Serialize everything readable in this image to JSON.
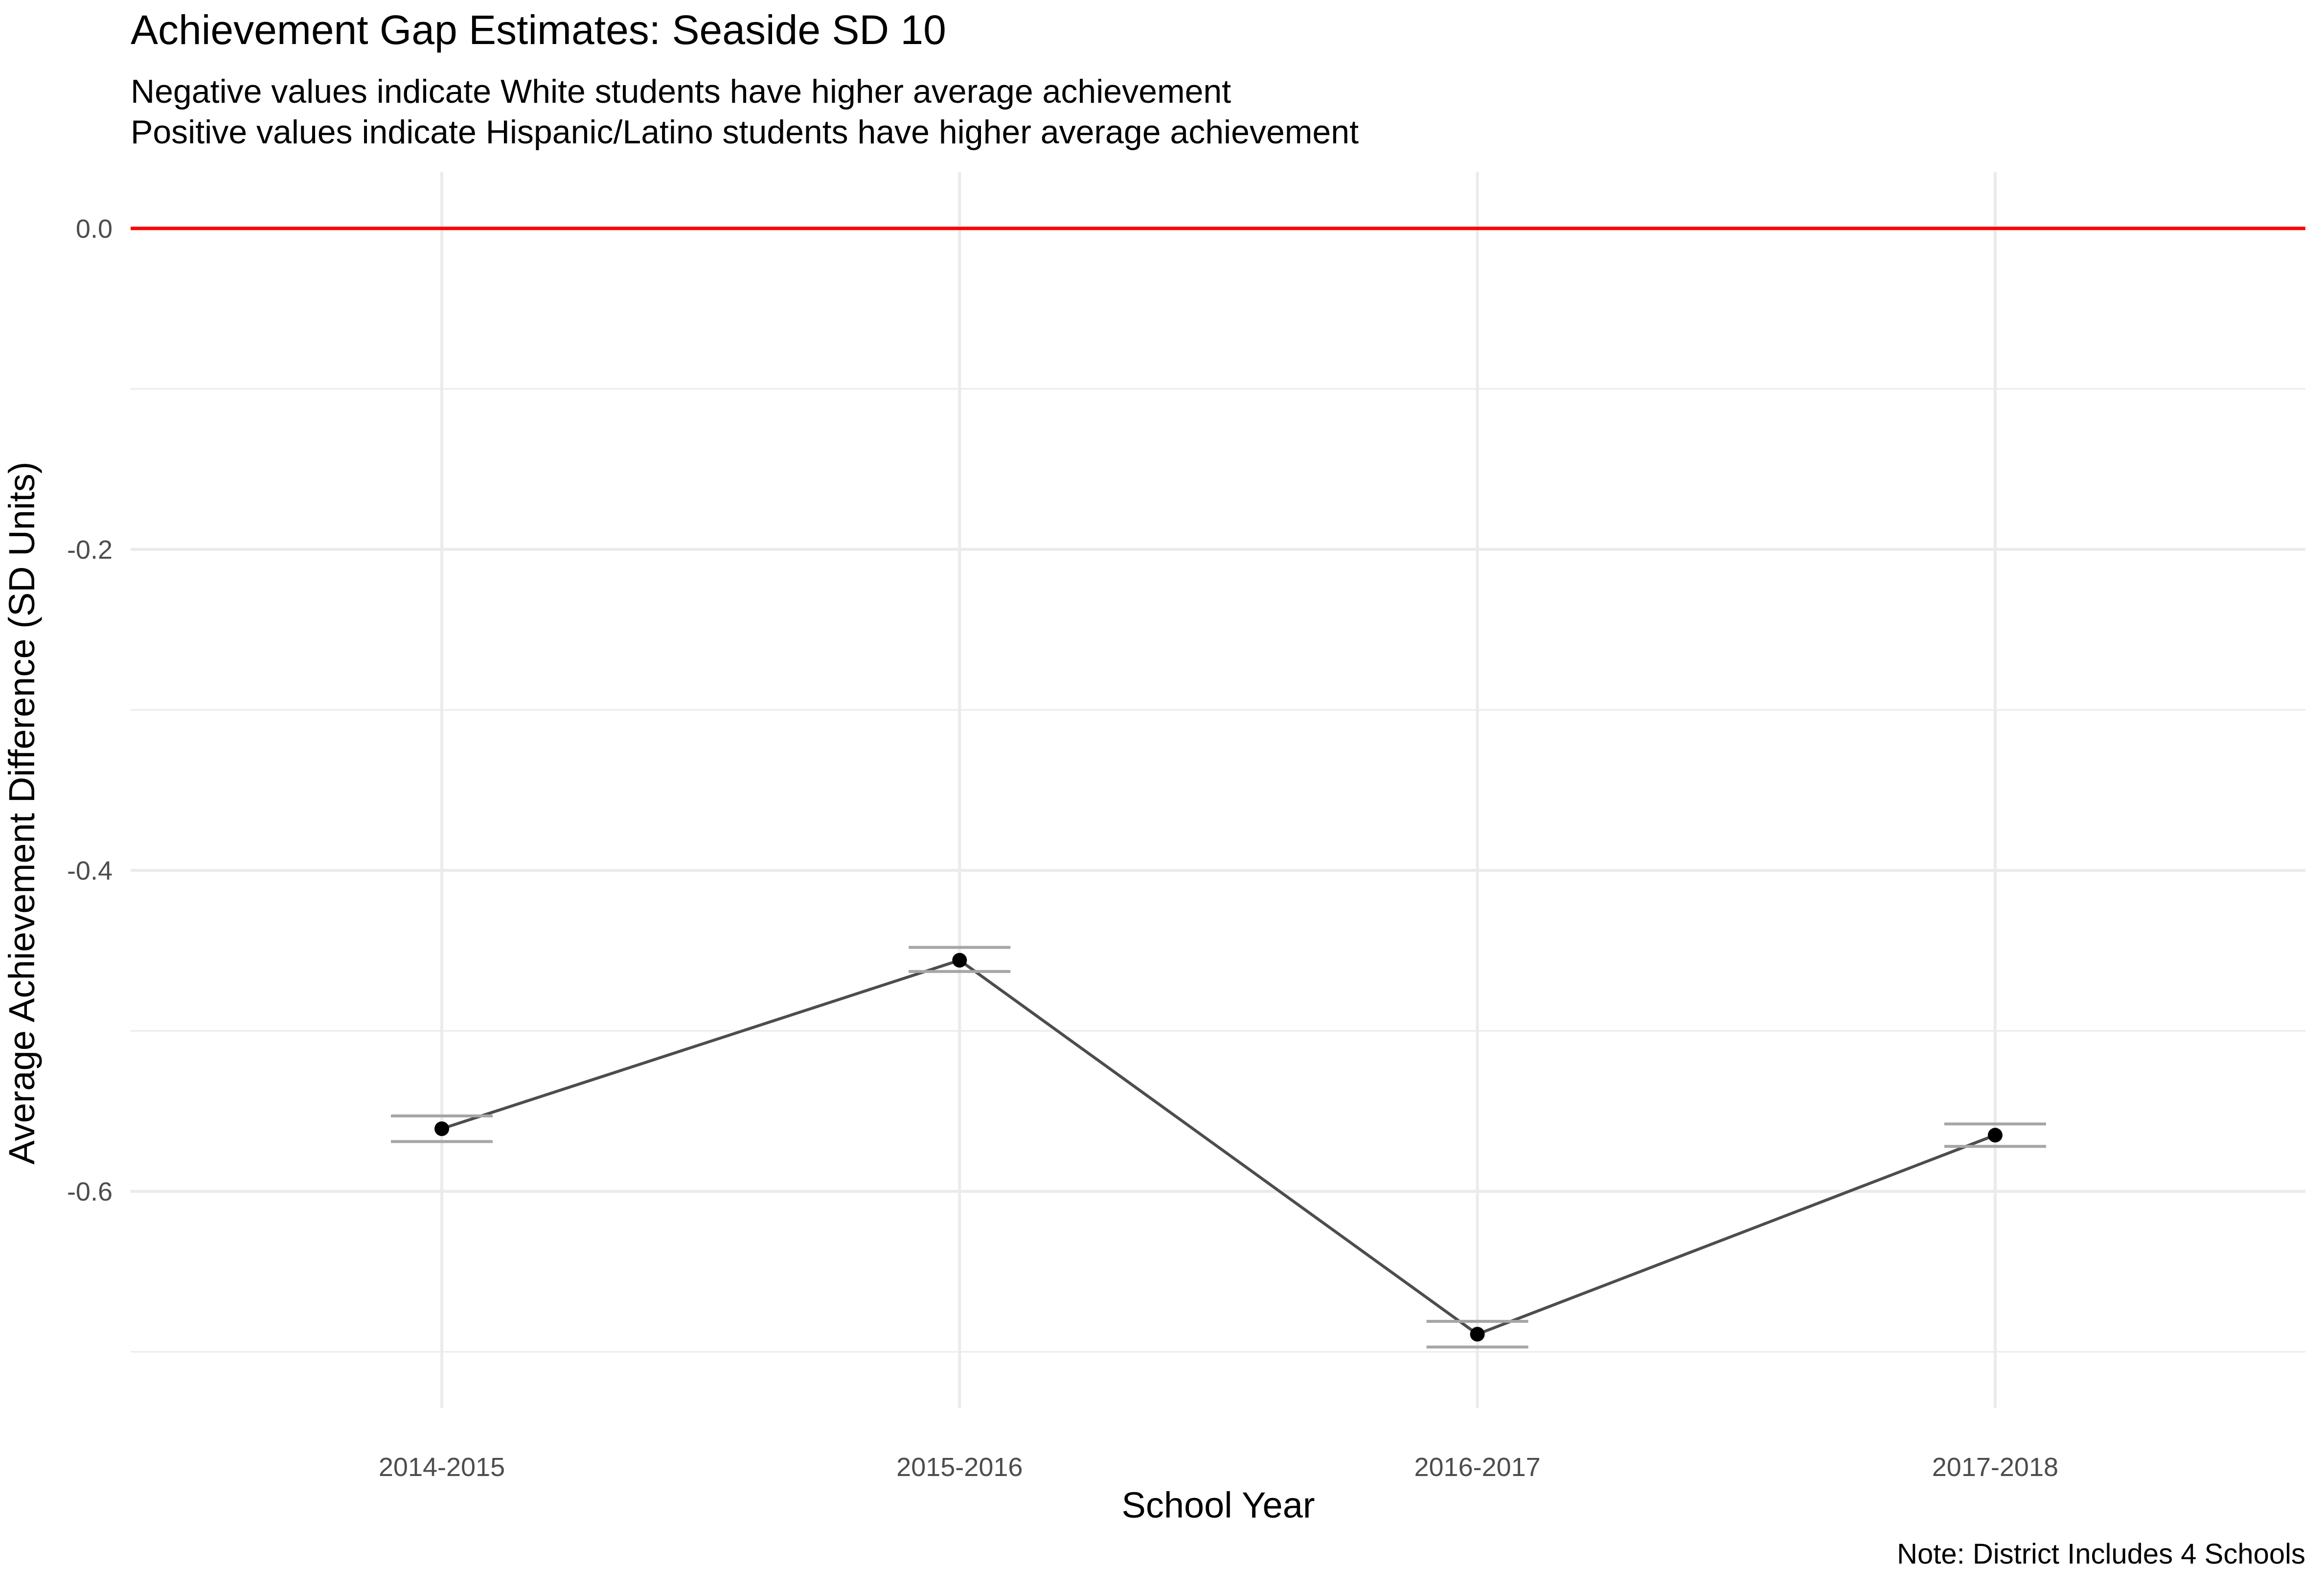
{
  "chart_data": {
    "type": "line",
    "title": "Achievement Gap Estimates: Seaside SD 10",
    "subtitle_lines": [
      "Negative values indicate White students have higher average achievement",
      "Positive values indicate Hispanic/Latino students have higher average achievement"
    ],
    "xlabel": "School Year",
    "ylabel": "Average Achievement Difference (SD Units)",
    "caption": "Note: District Includes 4 Schools",
    "categories": [
      "2014-2015",
      "2015-2016",
      "2016-2017",
      "2017-2018"
    ],
    "values": [
      -0.561,
      -0.456,
      -0.689,
      -0.565
    ],
    "error_lower": [
      -0.569,
      -0.463,
      -0.697,
      -0.572
    ],
    "error_upper": [
      -0.553,
      -0.448,
      -0.681,
      -0.558
    ],
    "reference_line": {
      "value": 0.0,
      "color": "#ff0000"
    },
    "yticks": [
      0.0,
      -0.2,
      -0.4,
      -0.6
    ],
    "ytick_labels": [
      "0.0",
      "-0.2",
      "-0.4",
      "-0.6"
    ],
    "ylim": [
      -0.735,
      0.035
    ],
    "grid": true,
    "legend": "none",
    "colors": {
      "line": "#4d4d4d",
      "point": "#000000",
      "errorbar": "#a6a6a6",
      "grid": "#ebebeb",
      "reference": "#ff0000"
    }
  }
}
